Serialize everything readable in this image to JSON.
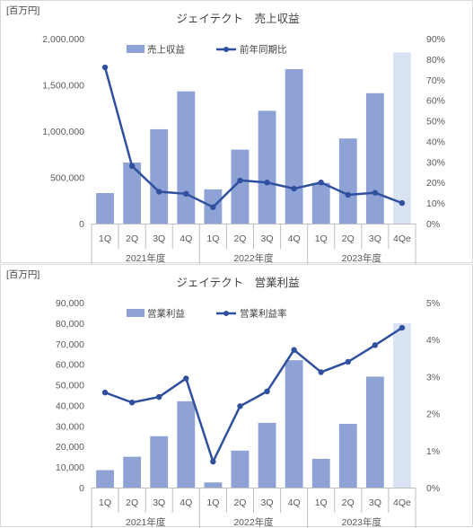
{
  "chart_data": [
    {
      "type": "bar",
      "title": "ジェイテクト　売上収益",
      "unit_label": "[百万円]",
      "categories": [
        "1Q",
        "2Q",
        "3Q",
        "4Q",
        "1Q",
        "2Q",
        "3Q",
        "4Q",
        "1Q",
        "2Q",
        "3Q",
        "4Qe"
      ],
      "groups": [
        {
          "label": "2021年度",
          "count": 4
        },
        {
          "label": "2022年度",
          "count": 4
        },
        {
          "label": "2023年度",
          "count": 4
        }
      ],
      "bar_series": {
        "name": "売上収益",
        "values": [
          330000,
          660000,
          1020000,
          1430000,
          370000,
          800000,
          1220000,
          1670000,
          440000,
          920000,
          1410000,
          1850000
        ],
        "color": "#8ea2d6",
        "forecast_color": "#dae3f3",
        "forecast_index": 11
      },
      "line_series": {
        "name": "前年同期比",
        "values": [
          76,
          28,
          15.5,
          14.5,
          8,
          21,
          20,
          17,
          20,
          14,
          15,
          10
        ],
        "color": "#2f4f9f"
      },
      "y_left": {
        "min": 0,
        "max": 2000000,
        "ticks": [
          "0",
          "500,000",
          "1,000,000",
          "1,500,000",
          "2,000,000"
        ]
      },
      "y_right": {
        "min": 0,
        "max": 90,
        "ticks": [
          "0%",
          "10%",
          "20%",
          "30%",
          "40%",
          "50%",
          "60%",
          "70%",
          "80%",
          "90%"
        ]
      },
      "grid": false,
      "legend": "top"
    },
    {
      "type": "bar",
      "title": "ジェイテクト　営業利益",
      "unit_label": "[百万円]",
      "categories": [
        "1Q",
        "2Q",
        "3Q",
        "4Q",
        "1Q",
        "2Q",
        "3Q",
        "4Q",
        "1Q",
        "2Q",
        "3Q",
        "4Qe"
      ],
      "groups": [
        {
          "label": "2021年度",
          "count": 4
        },
        {
          "label": "2022年度",
          "count": 4
        },
        {
          "label": "2023年度",
          "count": 4
        }
      ],
      "bar_series": {
        "name": "営業利益",
        "values": [
          8500,
          15000,
          25000,
          42000,
          2500,
          18000,
          31500,
          62000,
          14000,
          31000,
          54000,
          80000
        ],
        "color": "#8ea2d6",
        "forecast_color": "#dae3f3",
        "forecast_index": 11
      },
      "line_series": {
        "name": "営業利益率",
        "values": [
          2.57,
          2.3,
          2.45,
          2.95,
          0.7,
          2.2,
          2.6,
          3.72,
          3.12,
          3.4,
          3.85,
          4.32
        ],
        "color": "#2f4f9f"
      },
      "y_left": {
        "min": 0,
        "max": 90000,
        "ticks": [
          "0",
          "10,000",
          "20,000",
          "30,000",
          "40,000",
          "50,000",
          "60,000",
          "70,000",
          "80,000",
          "90,000"
        ]
      },
      "y_right": {
        "min": 0,
        "max": 5,
        "ticks": [
          "0%",
          "1%",
          "2%",
          "3%",
          "4%",
          "5%"
        ]
      },
      "grid": false,
      "legend": "top"
    }
  ]
}
